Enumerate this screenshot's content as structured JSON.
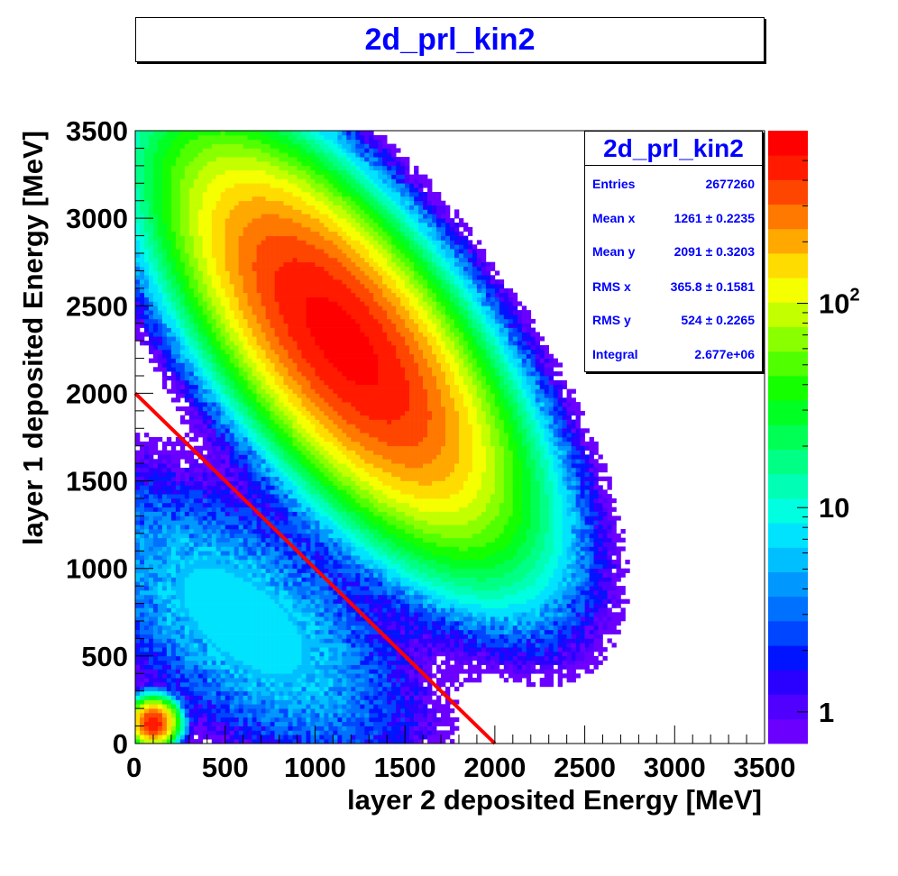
{
  "title": "2d_prl_kin2",
  "stats": {
    "name": "2d_prl_kin2",
    "rows": [
      {
        "label": "Entries",
        "value": "2677260"
      },
      {
        "label": "Mean x",
        "value": "1261 ± 0.2235"
      },
      {
        "label": "Mean y",
        "value": "2091 ± 0.3203"
      },
      {
        "label": "RMS x",
        "value": "365.8 ± 0.1581"
      },
      {
        "label": "RMS y",
        "value": "524 ± 0.2265"
      },
      {
        "label": "Integral",
        "value": "2.677e+06"
      }
    ]
  },
  "chart_data": {
    "type": "heatmap",
    "title": "2d_prl_kin2",
    "xlabel": "layer 2 deposited Energy [MeV]",
    "ylabel": "layer 1 deposited Energy [MeV]",
    "xlim": [
      0,
      3500
    ],
    "ylim": [
      0,
      3500
    ],
    "x_ticks": [
      "0",
      "500",
      "1000",
      "1500",
      "2000",
      "2500",
      "3000",
      "3500"
    ],
    "y_ticks": [
      "0",
      "500",
      "1000",
      "1500",
      "2000",
      "2500",
      "3000",
      "3500"
    ],
    "z_scale": "log",
    "z_ticks": [
      {
        "base": "1",
        "exp": "",
        "value": 1
      },
      {
        "base": "10",
        "exp": "",
        "value": 10
      },
      {
        "base": "10",
        "exp": "2",
        "value": 100
      }
    ],
    "zlim": [
      0.7,
      700
    ],
    "palette": [
      "#6b00ff",
      "#5000ff",
      "#2a00ff",
      "#0014ff",
      "#0045ff",
      "#0070ff",
      "#0098ff",
      "#00bfff",
      "#00e3ff",
      "#00ffe0",
      "#00ffb4",
      "#00ff85",
      "#00ff55",
      "#00ff22",
      "#14ff00",
      "#50ff00",
      "#8aff00",
      "#c4ff00",
      "#f6ff00",
      "#ffdc00",
      "#ffa800",
      "#ff7800",
      "#ff4600",
      "#ff1a00",
      "#ff0000"
    ],
    "blobs": [
      {
        "x": 1150,
        "y": 2300,
        "sx": 420,
        "sy": 520,
        "rho": -0.7,
        "amp": 600
      },
      {
        "x": 100,
        "y": 120,
        "sx": 60,
        "sy": 60,
        "rho": 0,
        "amp": 500
      },
      {
        "x": 600,
        "y": 700,
        "sx": 500,
        "sy": 450,
        "rho": -0.6,
        "amp": 8
      }
    ],
    "line": {
      "x": [
        0,
        2000
      ],
      "y": [
        2000,
        0
      ],
      "color": "#ff0000"
    }
  }
}
